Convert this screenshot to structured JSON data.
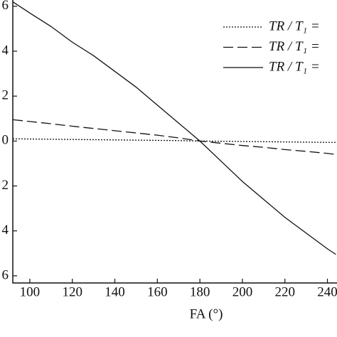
{
  "chart_data": {
    "type": "line",
    "x_label": "FA (°)",
    "x": [
      92,
      100,
      110,
      120,
      130,
      140,
      150,
      160,
      170,
      180,
      190,
      200,
      210,
      220,
      230,
      240,
      244
    ],
    "series": [
      {
        "name": "TR / T₁ =",
        "color": "#111111",
        "dash": "2,2",
        "values": [
          0.1,
          0.09,
          0.08,
          0.07,
          0.06,
          0.05,
          0.04,
          0.03,
          0.02,
          0.0,
          -0.01,
          -0.02,
          -0.03,
          -0.04,
          -0.05,
          -0.06,
          -0.06
        ]
      },
      {
        "name": "TR / T₁ =",
        "color": "#111111",
        "dash": "14,6",
        "values": [
          0.95,
          0.87,
          0.77,
          0.66,
          0.56,
          0.46,
          0.36,
          0.26,
          0.14,
          0.0,
          -0.1,
          -0.2,
          -0.28,
          -0.38,
          -0.46,
          -0.55,
          -0.6
        ]
      },
      {
        "name": "TR / T₁ =",
        "color": "#111111",
        "dash": "none",
        "values": [
          6.2,
          5.7,
          5.1,
          4.4,
          3.8,
          3.1,
          2.4,
          1.6,
          0.8,
          0.0,
          -0.9,
          -1.8,
          -2.6,
          -3.4,
          -4.1,
          -4.8,
          -5.05
        ]
      }
    ],
    "xlim": [
      92,
      244.5
    ],
    "ylim": [
      -6.32,
      6.28
    ],
    "xticks": [
      100,
      120,
      140,
      160,
      180,
      200,
      220,
      240
    ],
    "yticks": [
      {
        "value": 6,
        "label": "6"
      },
      {
        "value": 4,
        "label": "4"
      },
      {
        "value": 2,
        "label": "2"
      },
      {
        "value": 0,
        "label": "0"
      },
      {
        "value": -2,
        "label": "2"
      },
      {
        "value": -4,
        "label": "4"
      },
      {
        "value": -6,
        "label": "6"
      }
    ]
  }
}
